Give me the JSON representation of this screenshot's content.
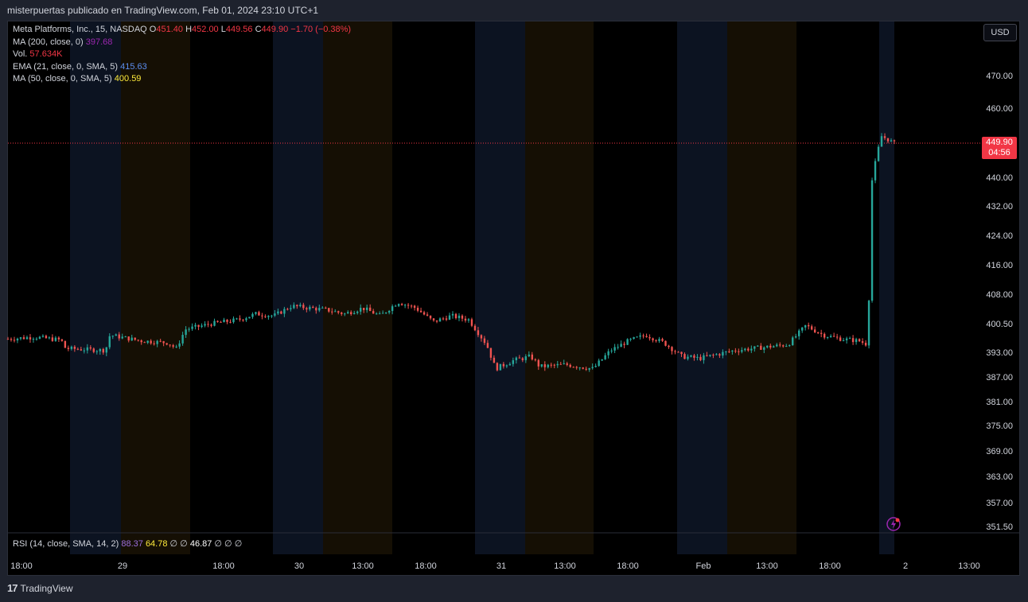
{
  "header": {
    "publish_line": "misterpuertas publicado en TradingView.com, Feb 01, 2024 23:10 UTC+1"
  },
  "legend": {
    "symbol": "Meta Platforms, Inc., 15, NASDAQ",
    "o_label": "O",
    "o_value": "451.40",
    "h_label": "H",
    "h_value": "452.00",
    "l_label": "L",
    "l_value": "449.56",
    "c_label": "C",
    "c_value": "449.90",
    "change": "−1.70 (−0.38%)",
    "ma200_label": "MA (200, close, 0)",
    "ma200_value": "397.68",
    "vol_label": "Vol.",
    "vol_value": "57.634K",
    "ema21_label": "EMA (21, close, 0, SMA, 5)",
    "ema21_value": "415.63",
    "ma50_label": "MA (50, close, 0, SMA, 5)",
    "ma50_value": "400.59"
  },
  "rsi": {
    "label": "RSI (14, close, SMA, 14, 2)",
    "value1": "88.37",
    "value2": "64.78",
    "value3": "∅ ∅",
    "value4": "46.87",
    "value5": "∅ ∅ ∅"
  },
  "currency_button": "USD",
  "price_tag": {
    "price": "449.90",
    "countdown": "04:56"
  },
  "footer": {
    "brand": "TradingView"
  },
  "colors": {
    "up": "#26a69a",
    "down": "#ef5350",
    "ma200": "#9c27b0",
    "ema21": "#2962ff",
    "ma50": "#ffeb3b",
    "pre_market": "#0c1321",
    "post_market": "#150f04"
  },
  "chart_data": {
    "type": "candlestick",
    "title": "Meta Platforms, Inc., 15, NASDAQ",
    "y_ticks": [
      "470.00",
      "460.00",
      "449.90",
      "440.00",
      "432.00",
      "424.00",
      "416.00",
      "408.00",
      "400.50",
      "393.00",
      "387.00",
      "381.00",
      "375.00",
      "369.00",
      "363.00",
      "357.00",
      "351.50"
    ],
    "x_ticks": [
      "18:00",
      "29",
      "18:00",
      "30",
      "13:00",
      "18:00",
      "31",
      "13:00",
      "18:00",
      "Feb",
      "13:00",
      "18:00",
      "2",
      "13:00"
    ],
    "last_price": 449.9,
    "series": [
      {
        "name": "Meta Platforms, Inc.",
        "close_path": [
          [
            0,
            396.5
          ],
          [
            0.03,
            397.0
          ],
          [
            0.06,
            396.2
          ],
          [
            0.065,
            394.0
          ],
          [
            0.11,
            393.5
          ],
          [
            0.115,
            397.5
          ],
          [
            0.15,
            396.0
          ],
          [
            0.18,
            395.5
          ],
          [
            0.19,
            394.0
          ],
          [
            0.2,
            399.0
          ],
          [
            0.23,
            400.5
          ],
          [
            0.26,
            401.5
          ],
          [
            0.28,
            403.0
          ],
          [
            0.3,
            402.5
          ],
          [
            0.32,
            405.0
          ],
          [
            0.34,
            404.5
          ],
          [
            0.36,
            404.0
          ],
          [
            0.38,
            403.0
          ],
          [
            0.4,
            404.5
          ],
          [
            0.42,
            402.5
          ],
          [
            0.44,
            406.0
          ],
          [
            0.46,
            404.5
          ],
          [
            0.48,
            401.0
          ],
          [
            0.5,
            402.5
          ],
          [
            0.52,
            401.5
          ],
          [
            0.54,
            395.0
          ],
          [
            0.55,
            389.0
          ],
          [
            0.57,
            391.0
          ],
          [
            0.59,
            392.0
          ],
          [
            0.6,
            389.5
          ],
          [
            0.63,
            390.0
          ],
          [
            0.66,
            389.0
          ],
          [
            0.68,
            393.5
          ],
          [
            0.7,
            396.0
          ],
          [
            0.72,
            397.5
          ],
          [
            0.74,
            395.5
          ],
          [
            0.76,
            392.0
          ],
          [
            0.78,
            391.5
          ],
          [
            0.8,
            392.5
          ],
          [
            0.82,
            393.5
          ],
          [
            0.84,
            394.0
          ],
          [
            0.86,
            394.5
          ],
          [
            0.88,
            395.0
          ],
          [
            0.9,
            400.0
          ],
          [
            0.92,
            397.5
          ],
          [
            0.94,
            396.5
          ],
          [
            0.96,
            396.0
          ],
          [
            0.97,
            395.0
          ],
          [
            0.975,
            440.0
          ],
          [
            0.985,
            452.0
          ],
          [
            1.0,
            449.9
          ]
        ]
      }
    ]
  }
}
